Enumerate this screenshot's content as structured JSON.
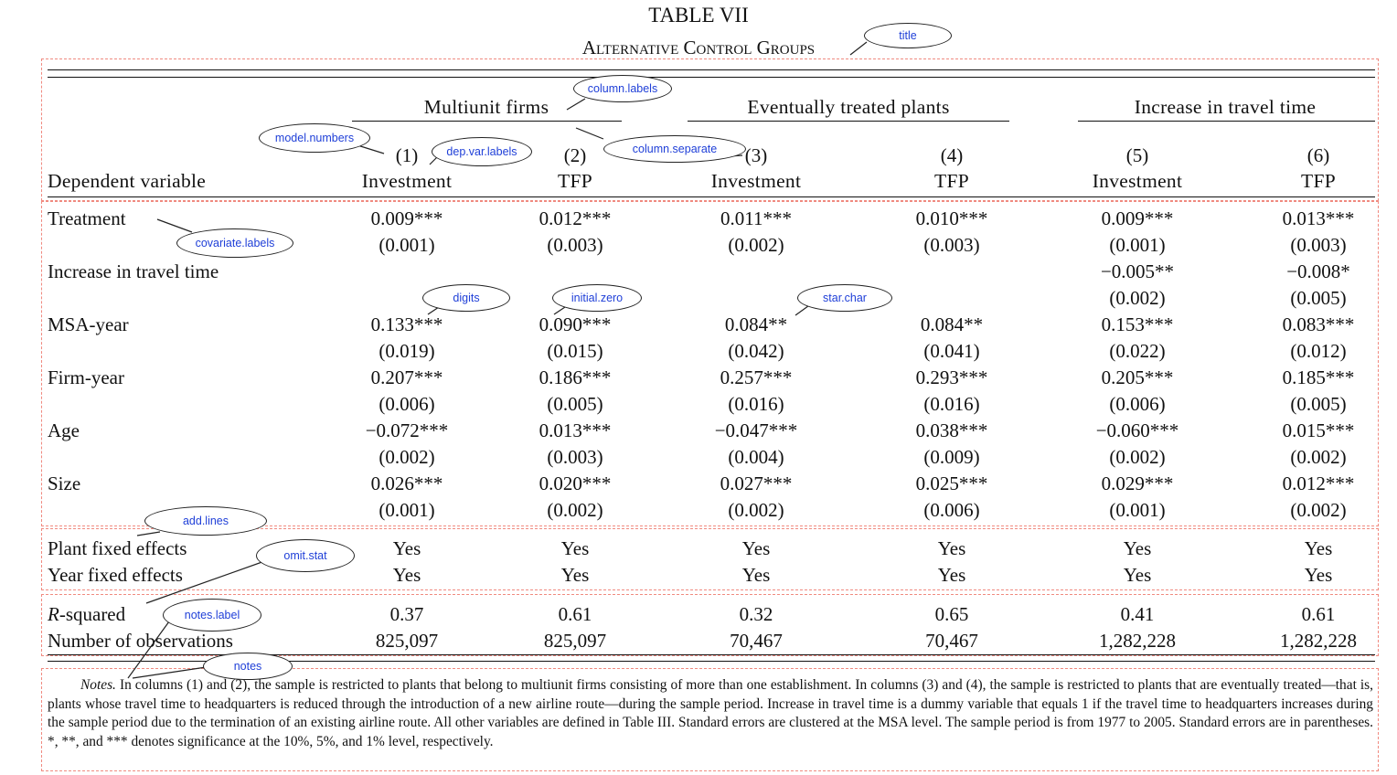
{
  "title": "TABLE VII",
  "subtitle": "Alternative Control Groups",
  "groups": [
    "Multiunit firms",
    "Eventually treated plants",
    "Increase in travel time"
  ],
  "model_numbers": [
    "(1)",
    "(2)",
    "(3)",
    "(4)",
    "(5)",
    "(6)"
  ],
  "dep_var_label": "Dependent variable",
  "dep_vars": [
    "Investment",
    "TFP",
    "Investment",
    "TFP",
    "Investment",
    "TFP"
  ],
  "rows": [
    {
      "label": "Treatment",
      "coef": [
        "0.009***",
        "0.012***",
        "0.011***",
        "0.010***",
        "0.009***",
        "0.013***"
      ],
      "se": [
        "(0.001)",
        "(0.003)",
        "(0.002)",
        "(0.003)",
        "(0.001)",
        "(0.003)"
      ]
    },
    {
      "label": "Increase in travel time",
      "coef": [
        "",
        "",
        "",
        "",
        "−0.005**",
        "−0.008*"
      ],
      "se": [
        "",
        "",
        "",
        "",
        "(0.002)",
        "(0.005)"
      ]
    },
    {
      "label": "MSA-year",
      "coef": [
        "0.133***",
        "0.090***",
        "0.084**",
        "0.084**",
        "0.153***",
        "0.083***"
      ],
      "se": [
        "(0.019)",
        "(0.015)",
        "(0.042)",
        "(0.041)",
        "(0.022)",
        "(0.012)"
      ]
    },
    {
      "label": "Firm-year",
      "coef": [
        "0.207***",
        "0.186***",
        "0.257***",
        "0.293***",
        "0.205***",
        "0.185***"
      ],
      "se": [
        "(0.006)",
        "(0.005)",
        "(0.016)",
        "(0.016)",
        "(0.006)",
        "(0.005)"
      ]
    },
    {
      "label": "Age",
      "coef": [
        "−0.072***",
        "0.013***",
        "−0.047***",
        "0.038***",
        "−0.060***",
        "0.015***"
      ],
      "se": [
        "(0.002)",
        "(0.003)",
        "(0.004)",
        "(0.009)",
        "(0.002)",
        "(0.002)"
      ]
    },
    {
      "label": "Size",
      "coef": [
        "0.026***",
        "0.020***",
        "0.027***",
        "0.025***",
        "0.029***",
        "0.012***"
      ],
      "se": [
        "(0.001)",
        "(0.002)",
        "(0.002)",
        "(0.006)",
        "(0.001)",
        "(0.002)"
      ]
    }
  ],
  "add_lines": [
    {
      "label": "Plant fixed effects",
      "values": [
        "Yes",
        "Yes",
        "Yes",
        "Yes",
        "Yes",
        "Yes"
      ]
    },
    {
      "label": "Year fixed effects",
      "values": [
        "Yes",
        "Yes",
        "Yes",
        "Yes",
        "Yes",
        "Yes"
      ]
    }
  ],
  "stats": [
    {
      "label_italic": "R",
      "label_rest": "-squared",
      "values": [
        "0.37",
        "0.61",
        "0.32",
        "0.65",
        "0.41",
        "0.61"
      ]
    },
    {
      "label_italic": "",
      "label_rest": "Number of observations",
      "values": [
        "825,097",
        "825,097",
        "70,467",
        "70,467",
        "1,282,228",
        "1,282,228"
      ]
    }
  ],
  "notes_label": "Notes.",
  "notes_text": " In columns (1) and (2), the sample is restricted to plants that belong to multiunit firms consisting of more than one establishment. In columns (3) and (4), the sample is restricted to plants that are eventually treated—that is, plants whose travel time to headquarters is reduced through the introduction of a new airline route—during the sample period. Increase in travel time is a dummy variable that equals 1 if the travel time to headquarters increases during the sample period due to the termination of an existing airline route. All other variables are defined in Table III. Standard errors are clustered at the MSA level. The sample period is from 1977 to 2005. Standard errors are in parentheses. *, **, and *** denotes significance at the 10%, 5%, and 1% level, respectively.",
  "annotations": [
    "title",
    "column.labels",
    "model.numbers",
    "dep.var.labels",
    "column.separate",
    "covariate.labels",
    "digits",
    "initial.zero",
    "star.char",
    "add.lines",
    "omit.stat",
    "notes.label",
    "notes"
  ]
}
